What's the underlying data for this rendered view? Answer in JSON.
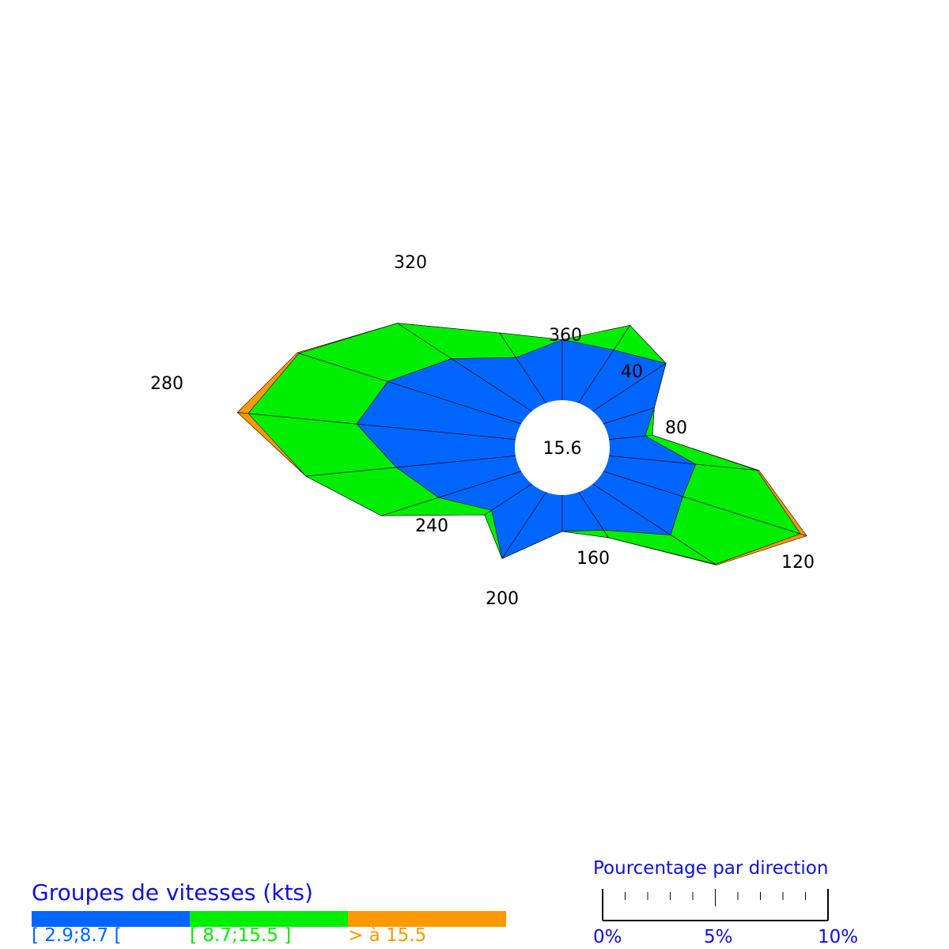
{
  "chart_data": {
    "type": "wind-rose",
    "center_value": "15.6",
    "direction_labels": [
      "280",
      "320",
      "360",
      "40",
      "80",
      "120",
      "160",
      "200",
      "240"
    ],
    "classes": [
      {
        "name": "[ 2.9;8.7 [",
        "color": "#0066ff"
      },
      {
        "name": "[ 8.7;15.5 ]",
        "color": "#00ee00"
      },
      {
        "name": "> à 15.5",
        "color": "#ff9900"
      }
    ],
    "sectors": [
      {
        "direction": 0,
        "values": [
          3.0,
          0.0,
          0.0
        ]
      },
      {
        "direction": 20,
        "values": [
          2.8,
          1.3,
          0.0
        ]
      },
      {
        "direction": 40,
        "values": [
          3.1,
          0.0,
          0.0
        ]
      },
      {
        "direction": 60,
        "values": [
          1.6,
          0.0,
          0.0
        ]
      },
      {
        "direction": 80,
        "values": [
          1.0,
          0.2,
          0.0
        ]
      },
      {
        "direction": 100,
        "values": [
          2.4,
          1.7,
          0.05
        ]
      },
      {
        "direction": 120,
        "values": [
          2.5,
          3.7,
          0.2
        ]
      },
      {
        "direction": 140,
        "values": [
          3.3,
          1.9,
          0.05
        ]
      },
      {
        "direction": 160,
        "values": [
          2.0,
          0.4,
          0.0
        ]
      },
      {
        "direction": 180,
        "values": [
          1.8,
          0.0,
          0.0
        ]
      },
      {
        "direction": 200,
        "values": [
          3.5,
          0.0,
          0.0
        ]
      },
      {
        "direction": 220,
        "values": [
          1.7,
          0.3,
          0.0
        ]
      },
      {
        "direction": 240,
        "values": [
          2.6,
          1.8,
          0.0
        ]
      },
      {
        "direction": 260,
        "values": [
          3.3,
          2.5,
          0.0
        ]
      },
      {
        "direction": 280,
        "values": [
          4.4,
          3.0,
          0.3
        ]
      },
      {
        "direction": 300,
        "values": [
          4.2,
          2.8,
          0.05
        ]
      },
      {
        "direction": 320,
        "values": [
          3.4,
          2.3,
          0.0
        ]
      },
      {
        "direction": 340,
        "values": [
          2.4,
          1.3,
          0.0
        ]
      }
    ]
  },
  "legend": {
    "title": "Groupes de vitesses (kts)",
    "items": [
      {
        "label": "[ 2.9;8.7 [",
        "color": "#0066ff"
      },
      {
        "label": "[ 8.7;15.5 ]",
        "color": "#00ee00"
      },
      {
        "label": "> à 15.5",
        "color": "#ff9900"
      }
    ]
  },
  "scale": {
    "title": "Pourcentage par direction",
    "labels": [
      "0%",
      "5%",
      "10%"
    ],
    "max_percent": 10
  }
}
